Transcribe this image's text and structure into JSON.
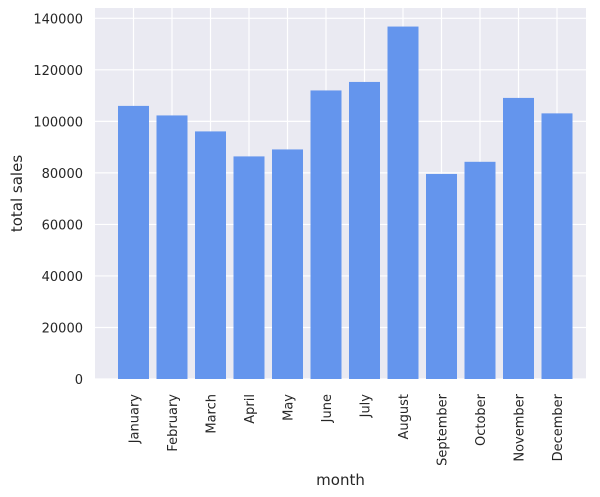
{
  "chart_data": {
    "type": "bar",
    "categories": [
      "January",
      "February",
      "March",
      "April",
      "May",
      "June",
      "July",
      "August",
      "September",
      "October",
      "November",
      "December"
    ],
    "values": [
      106000,
      102300,
      96100,
      86400,
      89100,
      112000,
      115300,
      136800,
      79600,
      84300,
      109100,
      103100
    ],
    "xlabel": "month",
    "ylabel": "total sales",
    "ylim": [
      0,
      144000
    ],
    "yticks": [
      0,
      20000,
      40000,
      60000,
      80000,
      100000,
      120000,
      140000
    ],
    "ytick_labels": [
      "0",
      "20000",
      "40000",
      "60000",
      "80000",
      "100000",
      "120000",
      "140000"
    ],
    "grid": true,
    "colors": {
      "bar": "#6495ED",
      "background": "#EAEAF2",
      "grid": "#FFFFFF",
      "text": "#262626"
    }
  }
}
